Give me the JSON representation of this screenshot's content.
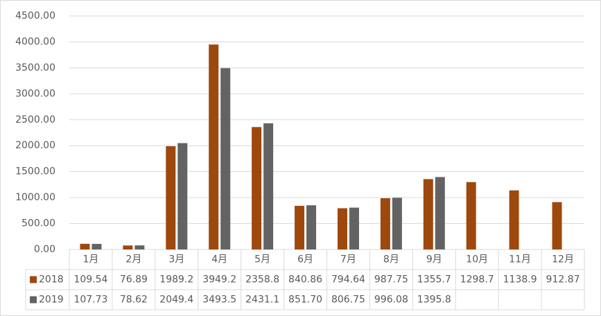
{
  "chart_data": {
    "type": "bar",
    "categories": [
      "1月",
      "2月",
      "3月",
      "4月",
      "5月",
      "6月",
      "7月",
      "8月",
      "9月",
      "10月",
      "11月",
      "12月"
    ],
    "series": [
      {
        "name": "2018",
        "color": "#9e480e",
        "values": [
          109.54,
          76.89,
          1989.2,
          3949.2,
          2358.8,
          840.86,
          794.64,
          987.75,
          1355.7,
          1298.7,
          1138.9,
          912.87
        ],
        "value_labels": [
          "109.54",
          "76.89",
          "1989.2",
          "3949.2",
          "2358.8",
          "840.86",
          "794.64",
          "987.75",
          "1355.7",
          "1298.7",
          "1138.9",
          "912.87"
        ]
      },
      {
        "name": "2019",
        "color": "#636363",
        "values": [
          107.73,
          78.62,
          2049.4,
          3493.5,
          2431.1,
          851.7,
          806.75,
          996.08,
          1395.8,
          null,
          null,
          null
        ],
        "value_labels": [
          "107.73",
          "78.62",
          "2049.4",
          "3493.5",
          "2431.1",
          "851.70",
          "806.75",
          "996.08",
          "1395.8",
          null,
          null,
          null
        ]
      }
    ],
    "ylim": [
      0,
      4500
    ],
    "yticks": [
      {
        "value": 0,
        "label": "0.00"
      },
      {
        "value": 500,
        "label": "500.00"
      },
      {
        "value": 1000,
        "label": "1000.00"
      },
      {
        "value": 1500,
        "label": "1500.00"
      },
      {
        "value": 2000,
        "label": "2000.00"
      },
      {
        "value": 2500,
        "label": "2500.00"
      },
      {
        "value": 3000,
        "label": "3000.00"
      },
      {
        "value": 3500,
        "label": "3500.00"
      },
      {
        "value": 4000,
        "label": "4000.00"
      },
      {
        "value": 4500,
        "label": "4500.00"
      }
    ],
    "grid": true
  }
}
